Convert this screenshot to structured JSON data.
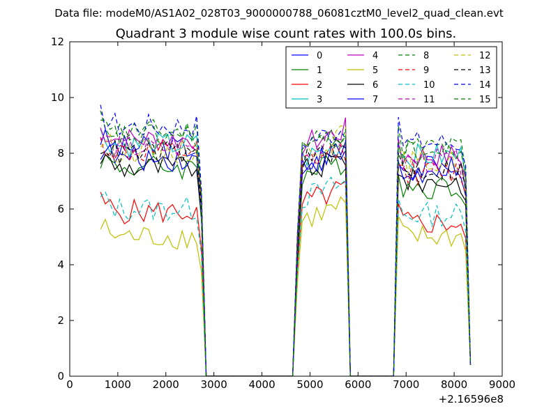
{
  "suptitle": "Data file: modeM0/AS1A02_028T03_9000000788_06081cztM0_level2_quad_clean.evt",
  "chart_data": {
    "type": "line",
    "title": "Quadrant 3 module wise count rates with 100.0s bins.",
    "xlabel": "",
    "ylabel": "",
    "x_offset_label": "+2.16596e8",
    "xlim": [
      0,
      9000
    ],
    "ylim": [
      0,
      12
    ],
    "x_ticks": [
      0,
      1000,
      2000,
      3000,
      4000,
      5000,
      6000,
      7000,
      8000,
      9000
    ],
    "y_ticks": [
      0,
      2,
      4,
      6,
      8,
      10,
      12
    ],
    "grid": false,
    "legend_position": "top-right",
    "legend_columns": 4,
    "x": [
      640,
      740,
      840,
      940,
      1040,
      1140,
      1240,
      1340,
      1440,
      1540,
      1640,
      1740,
      1840,
      1940,
      2040,
      2140,
      2240,
      2340,
      2440,
      2540,
      2640,
      2740,
      2840,
      2940,
      3040,
      3140,
      3240,
      3340,
      3440,
      3540,
      3640,
      3740,
      3840,
      3940,
      4040,
      4140,
      4240,
      4340,
      4440,
      4540,
      4640,
      4740,
      4840,
      4940,
      5040,
      5140,
      5240,
      5340,
      5440,
      5540,
      5640,
      5740,
      5840,
      5940,
      6040,
      6140,
      6240,
      6340,
      6440,
      6540,
      6640,
      6740,
      6840,
      6940,
      7040,
      7140,
      7240,
      7340,
      7440,
      7540,
      7640,
      7740,
      7840,
      7940,
      8040,
      8140,
      8240,
      8340
    ],
    "series": [
      {
        "name": "0",
        "color": "#0000ff",
        "dash": "solid",
        "level1": 8.2,
        "level2": 7.5,
        "level3": 7.5
      },
      {
        "name": "1",
        "color": "#008000",
        "dash": "solid",
        "level1": 7.5,
        "level2": 7.2,
        "level3": 6.8
      },
      {
        "name": "2",
        "color": "#ff0000",
        "dash": "solid",
        "level1": 5.9,
        "level2": 6.2,
        "level3": 5.5
      },
      {
        "name": "3",
        "color": "#00bfbf",
        "dash": "solid",
        "level1": 8.3,
        "level2": 7.8,
        "level3": 7.9
      },
      {
        "name": "4",
        "color": "#bf00bf",
        "dash": "solid",
        "level1": 8.5,
        "level2": 8.3,
        "level3": 7.9
      },
      {
        "name": "5",
        "color": "#bfbf00",
        "dash": "solid",
        "level1": 5.0,
        "level2": 5.6,
        "level3": 5.0
      },
      {
        "name": "6",
        "color": "#000000",
        "dash": "solid",
        "level1": 7.5,
        "level2": 7.3,
        "level3": 7.0
      },
      {
        "name": "7",
        "color": "#0000ff",
        "dash": "solid",
        "level1": 7.8,
        "level2": 7.6,
        "level3": 7.2
      },
      {
        "name": "8",
        "color": "#008000",
        "dash": "dashed",
        "level1": 8.8,
        "level2": 8.2,
        "level3": 8.2
      },
      {
        "name": "9",
        "color": "#ff0000",
        "dash": "dashed",
        "level1": 8.0,
        "level2": 7.6,
        "level3": 7.3
      },
      {
        "name": "10",
        "color": "#00bfbf",
        "dash": "dashed",
        "level1": 6.0,
        "level2": 6.4,
        "level3": 5.8
      },
      {
        "name": "11",
        "color": "#bf00bf",
        "dash": "dashed",
        "level1": 8.2,
        "level2": 8.0,
        "level3": 7.7
      },
      {
        "name": "12",
        "color": "#bfbf00",
        "dash": "dashed",
        "level1": 8.1,
        "level2": 8.1,
        "level3": 7.7
      },
      {
        "name": "13",
        "color": "#000000",
        "dash": "dashed",
        "level1": 8.0,
        "level2": 7.7,
        "level3": 7.4
      },
      {
        "name": "14",
        "color": "#0000ff",
        "dash": "dashed",
        "level1": 9.0,
        "level2": 8.4,
        "level3": 8.4
      },
      {
        "name": "15",
        "color": "#008000",
        "dash": "dashed",
        "level1": 8.6,
        "level2": 8.2,
        "level3": 8.0
      }
    ]
  }
}
